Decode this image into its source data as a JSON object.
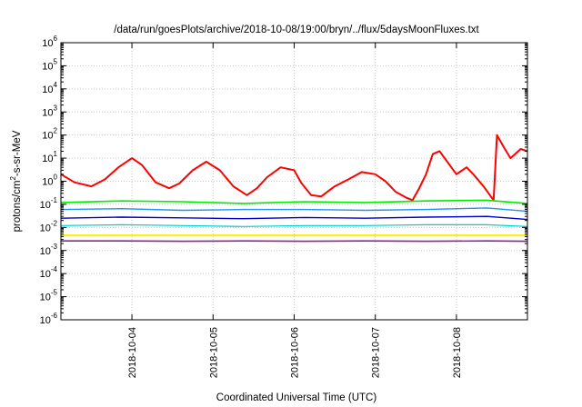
{
  "chart_data": {
    "type": "line",
    "title": "/data/run/goesPlots/archive/2018-10-08/19:00/bryn/../flux/5daysMoonFluxes.txt",
    "xlabel": "Coordinated Universal Time (UTC)",
    "ylabel": "protons/cm2-s-sr-MeV",
    "ylabel_parts": {
      "base": "protons/cm",
      "sup": "2",
      "rest": "-s-sr-MeV"
    },
    "x_range": [
      "2018-10-03T03:00",
      "2018-10-08T21:00"
    ],
    "x_ticks": [
      "2018-10-04",
      "2018-10-05",
      "2018-10-06",
      "2018-10-07",
      "2018-10-08"
    ],
    "y_scale": "log",
    "ylim": [
      1e-06,
      1000000.0
    ],
    "y_ticks": [
      {
        "value": 1e-06,
        "base": "10",
        "exp": "-6"
      },
      {
        "value": 1e-05,
        "base": "10",
        "exp": "-5"
      },
      {
        "value": 0.0001,
        "base": "10",
        "exp": "-4"
      },
      {
        "value": 0.001,
        "base": "10",
        "exp": "-3"
      },
      {
        "value": 0.01,
        "base": "10",
        "exp": "-2"
      },
      {
        "value": 0.1,
        "base": "10",
        "exp": "-1"
      },
      {
        "value": 1,
        "base": "10",
        "exp": "0"
      },
      {
        "value": 10.0,
        "base": "10",
        "exp": "1"
      },
      {
        "value": 100.0,
        "base": "10",
        "exp": "2"
      },
      {
        "value": 1000.0,
        "base": "10",
        "exp": "3"
      },
      {
        "value": 10000.0,
        "base": "10",
        "exp": "4"
      },
      {
        "value": 100000.0,
        "base": "10",
        "exp": "5"
      },
      {
        "value": 1000000.0,
        "base": "10",
        "exp": "6"
      }
    ],
    "grid": true,
    "series": [
      {
        "color": "#ff0000",
        "width": 2,
        "x": [
          "2018-10-03T03:00",
          "2018-10-03T07:00",
          "2018-10-03T12:00",
          "2018-10-03T16:00",
          "2018-10-03T20:00",
          "2018-10-04T00:00",
          "2018-10-04T03:00",
          "2018-10-04T07:00",
          "2018-10-04T11:00",
          "2018-10-04T14:00",
          "2018-10-04T18:00",
          "2018-10-04T22:00",
          "2018-10-05T02:00",
          "2018-10-05T06:00",
          "2018-10-05T10:00",
          "2018-10-05T13:00",
          "2018-10-05T16:00",
          "2018-10-05T20:00",
          "2018-10-06T00:00",
          "2018-10-06T02:00",
          "2018-10-06T05:00",
          "2018-10-06T08:00",
          "2018-10-06T12:00",
          "2018-10-06T16:00",
          "2018-10-06T20:00",
          "2018-10-07T00:00",
          "2018-10-07T03:00",
          "2018-10-07T06:00",
          "2018-10-07T09:00",
          "2018-10-07T11:00",
          "2018-10-07T13:00",
          "2018-10-07T15:00",
          "2018-10-07T17:00",
          "2018-10-07T19:00",
          "2018-10-07T22:00",
          "2018-10-08T00:00",
          "2018-10-08T03:00",
          "2018-10-08T05:00",
          "2018-10-08T08:00",
          "2018-10-08T11:00",
          "2018-10-08T12:00",
          "2018-10-08T14:00",
          "2018-10-08T16:00",
          "2018-10-08T19:00",
          "2018-10-08T21:00"
        ],
        "y": [
          2.0,
          0.9,
          0.6,
          1.2,
          4.0,
          10.0,
          5.0,
          0.9,
          0.5,
          0.8,
          3.0,
          7.0,
          3.0,
          0.6,
          0.25,
          0.5,
          1.5,
          4.0,
          3.0,
          0.9,
          0.25,
          0.22,
          0.6,
          1.2,
          2.5,
          2.0,
          1.0,
          0.35,
          0.2,
          0.15,
          0.5,
          2.0,
          15.0,
          20.0,
          5.0,
          2.0,
          4.0,
          2.0,
          0.6,
          0.15,
          100.0,
          30.0,
          10.0,
          25.0,
          20.0
        ]
      },
      {
        "color": "#00ee00",
        "width": 1.6,
        "x": [
          "2018-10-03T03:00",
          "2018-10-03T21:00",
          "2018-10-04T15:00",
          "2018-10-05T09:00",
          "2018-10-06T03:00",
          "2018-10-06T21:00",
          "2018-10-07T15:00",
          "2018-10-08T09:00",
          "2018-10-08T21:00"
        ],
        "y": [
          0.12,
          0.14,
          0.13,
          0.11,
          0.13,
          0.12,
          0.14,
          0.15,
          0.11
        ]
      },
      {
        "color": "#1e90ff",
        "width": 1.4,
        "x": [
          "2018-10-03T03:00",
          "2018-10-03T21:00",
          "2018-10-04T15:00",
          "2018-10-05T09:00",
          "2018-10-06T03:00",
          "2018-10-06T21:00",
          "2018-10-07T15:00",
          "2018-10-08T09:00",
          "2018-10-08T21:00"
        ],
        "y": [
          0.06,
          0.065,
          0.055,
          0.06,
          0.06,
          0.055,
          0.06,
          0.07,
          0.05
        ]
      },
      {
        "color": "#0000cc",
        "width": 1.4,
        "x": [
          "2018-10-03T03:00",
          "2018-10-03T21:00",
          "2018-10-04T15:00",
          "2018-10-05T09:00",
          "2018-10-06T03:00",
          "2018-10-06T21:00",
          "2018-10-07T15:00",
          "2018-10-08T09:00",
          "2018-10-08T21:00"
        ],
        "y": [
          0.025,
          0.028,
          0.026,
          0.024,
          0.027,
          0.025,
          0.028,
          0.03,
          0.022
        ]
      },
      {
        "color": "#00cccc",
        "width": 1.2,
        "x": [
          "2018-10-03T03:00",
          "2018-10-03T21:00",
          "2018-10-04T15:00",
          "2018-10-05T09:00",
          "2018-10-06T03:00",
          "2018-10-06T21:00",
          "2018-10-07T15:00",
          "2018-10-08T09:00",
          "2018-10-08T21:00"
        ],
        "y": [
          0.012,
          0.013,
          0.012,
          0.011,
          0.012,
          0.012,
          0.013,
          0.013,
          0.011
        ]
      },
      {
        "color": "#ffee00",
        "width": 2,
        "x": [
          "2018-10-03T03:00",
          "2018-10-04T12:00",
          "2018-10-05T21:00",
          "2018-10-07T06:00",
          "2018-10-08T21:00"
        ],
        "y": [
          0.0045,
          0.0045,
          0.0045,
          0.0045,
          0.0045
        ]
      },
      {
        "color": "#8b2a8b",
        "width": 1.6,
        "x": [
          "2018-10-03T03:00",
          "2018-10-03T21:00",
          "2018-10-04T15:00",
          "2018-10-05T09:00",
          "2018-10-06T03:00",
          "2018-10-06T21:00",
          "2018-10-07T15:00",
          "2018-10-08T09:00",
          "2018-10-08T21:00"
        ],
        "y": [
          0.0026,
          0.0026,
          0.0025,
          0.0026,
          0.0025,
          0.0026,
          0.0025,
          0.0026,
          0.0025
        ]
      }
    ]
  }
}
